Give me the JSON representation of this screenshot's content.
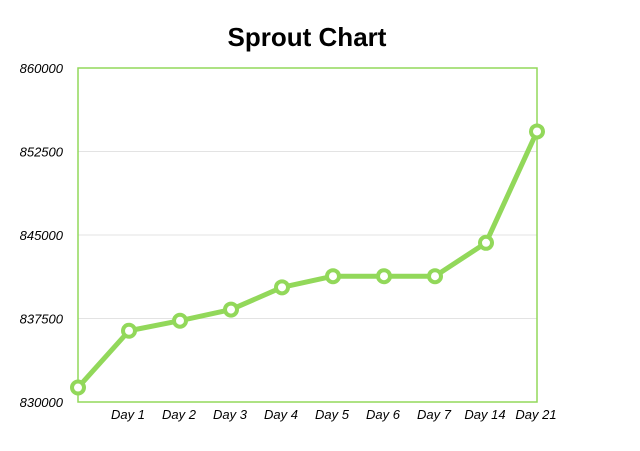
{
  "chart_data": {
    "type": "line",
    "title": "Sprout Chart",
    "categories": [
      "",
      "Day 1",
      "Day 2",
      "Day 3",
      "Day 4",
      "Day 5",
      "Day 6",
      "Day 7",
      "Day 14",
      "Day 21"
    ],
    "series": [
      {
        "values": [
          831300,
          836400,
          837300,
          838300,
          840300,
          841300,
          841300,
          841300,
          844300,
          854300
        ]
      }
    ],
    "ylim": [
      830000,
      860000
    ],
    "yticks": [
      "830000",
      "837500",
      "845000",
      "852500",
      "860000"
    ],
    "grid": true,
    "colors": {
      "line": "#92d85a",
      "marker_fill": "#ffffff",
      "frame": "#92d85a",
      "grid": "#e3e3e3"
    }
  }
}
